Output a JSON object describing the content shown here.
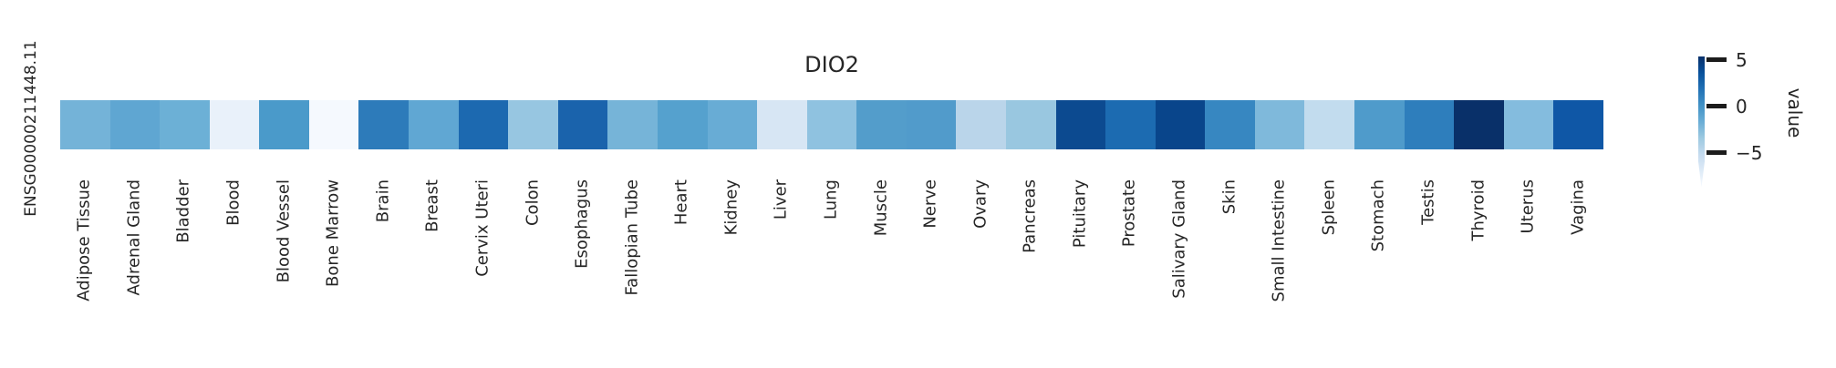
{
  "title": "DIO2",
  "row_label": "ENSG00000211448.11",
  "colorbar": {
    "label": "value",
    "ticks": [
      "5",
      "0",
      "−5"
    ],
    "tick_values": [
      5,
      0,
      -5
    ],
    "colormap": "Blues",
    "colormap_stops": [
      "#f7fbff",
      "#deebf7",
      "#c6dbef",
      "#9ecae1",
      "#6baed6",
      "#4292c6",
      "#2171b5",
      "#08519c",
      "#08306b"
    ]
  },
  "text_color": "#262626",
  "background_color": "#ffffff",
  "chart_data": {
    "type": "heatmap",
    "title": "DIO2",
    "rows": [
      "ENSG00000211448.11"
    ],
    "categories": [
      "Adipose Tissue",
      "Adrenal Gland",
      "Bladder",
      "Blood",
      "Blood Vessel",
      "Bone Marrow",
      "Brain",
      "Breast",
      "Cervix Uteri",
      "Colon",
      "Esophagus",
      "Fallopian Tube",
      "Heart",
      "Kidney",
      "Liver",
      "Lung",
      "Muscle",
      "Nerve",
      "Ovary",
      "Pancreas",
      "Pituitary",
      "Prostate",
      "Salivary Gland",
      "Skin",
      "Small Intestine",
      "Spleen",
      "Stomach",
      "Testis",
      "Thyroid",
      "Uterus",
      "Vagina"
    ],
    "series": [
      {
        "name": "ENSG00000211448.11",
        "values_estimated": [
          -2.1,
          -1.2,
          -1.8,
          -7.8,
          -0.3,
          -8.7,
          1.1,
          -1.3,
          2.1,
          -3.3,
          2.3,
          -2.2,
          -0.8,
          -1.6,
          -6.5,
          -3.0,
          -0.7,
          -0.6,
          -4.8,
          -3.3,
          3.9,
          2.1,
          4.2,
          0.6,
          -2.5,
          -5.1,
          -0.6,
          1.1,
          5.3,
          -2.6,
          3.2
        ],
        "cell_colors": [
          "#74b3d8",
          "#5fa6d2",
          "#6cb0d6",
          "#e9f1fa",
          "#4a9aca",
          "#f5f9fe",
          "#2d7bba",
          "#60a7d3",
          "#1c69b0",
          "#97c6e1",
          "#1a63ac",
          "#76b4d8",
          "#55a1ce",
          "#68acd5",
          "#d7e6f4",
          "#8fc2e0",
          "#539dcb",
          "#519bcb",
          "#bad5ea",
          "#99c7e0",
          "#0c4a90",
          "#1c6bb1",
          "#09458b",
          "#3787c1",
          "#7fb9db",
          "#c2dcee",
          "#4f9bcb",
          "#2e7ebc",
          "#093069",
          "#84bcde",
          "#0f57a6"
        ]
      }
    ],
    "colormap": "Blues",
    "colorbar_label": "value",
    "colorbar_ticks": [
      5,
      0,
      -5
    ],
    "value_range_estimate": [
      -8.8,
      5.3
    ],
    "legend_position": "right",
    "grid": false
  }
}
